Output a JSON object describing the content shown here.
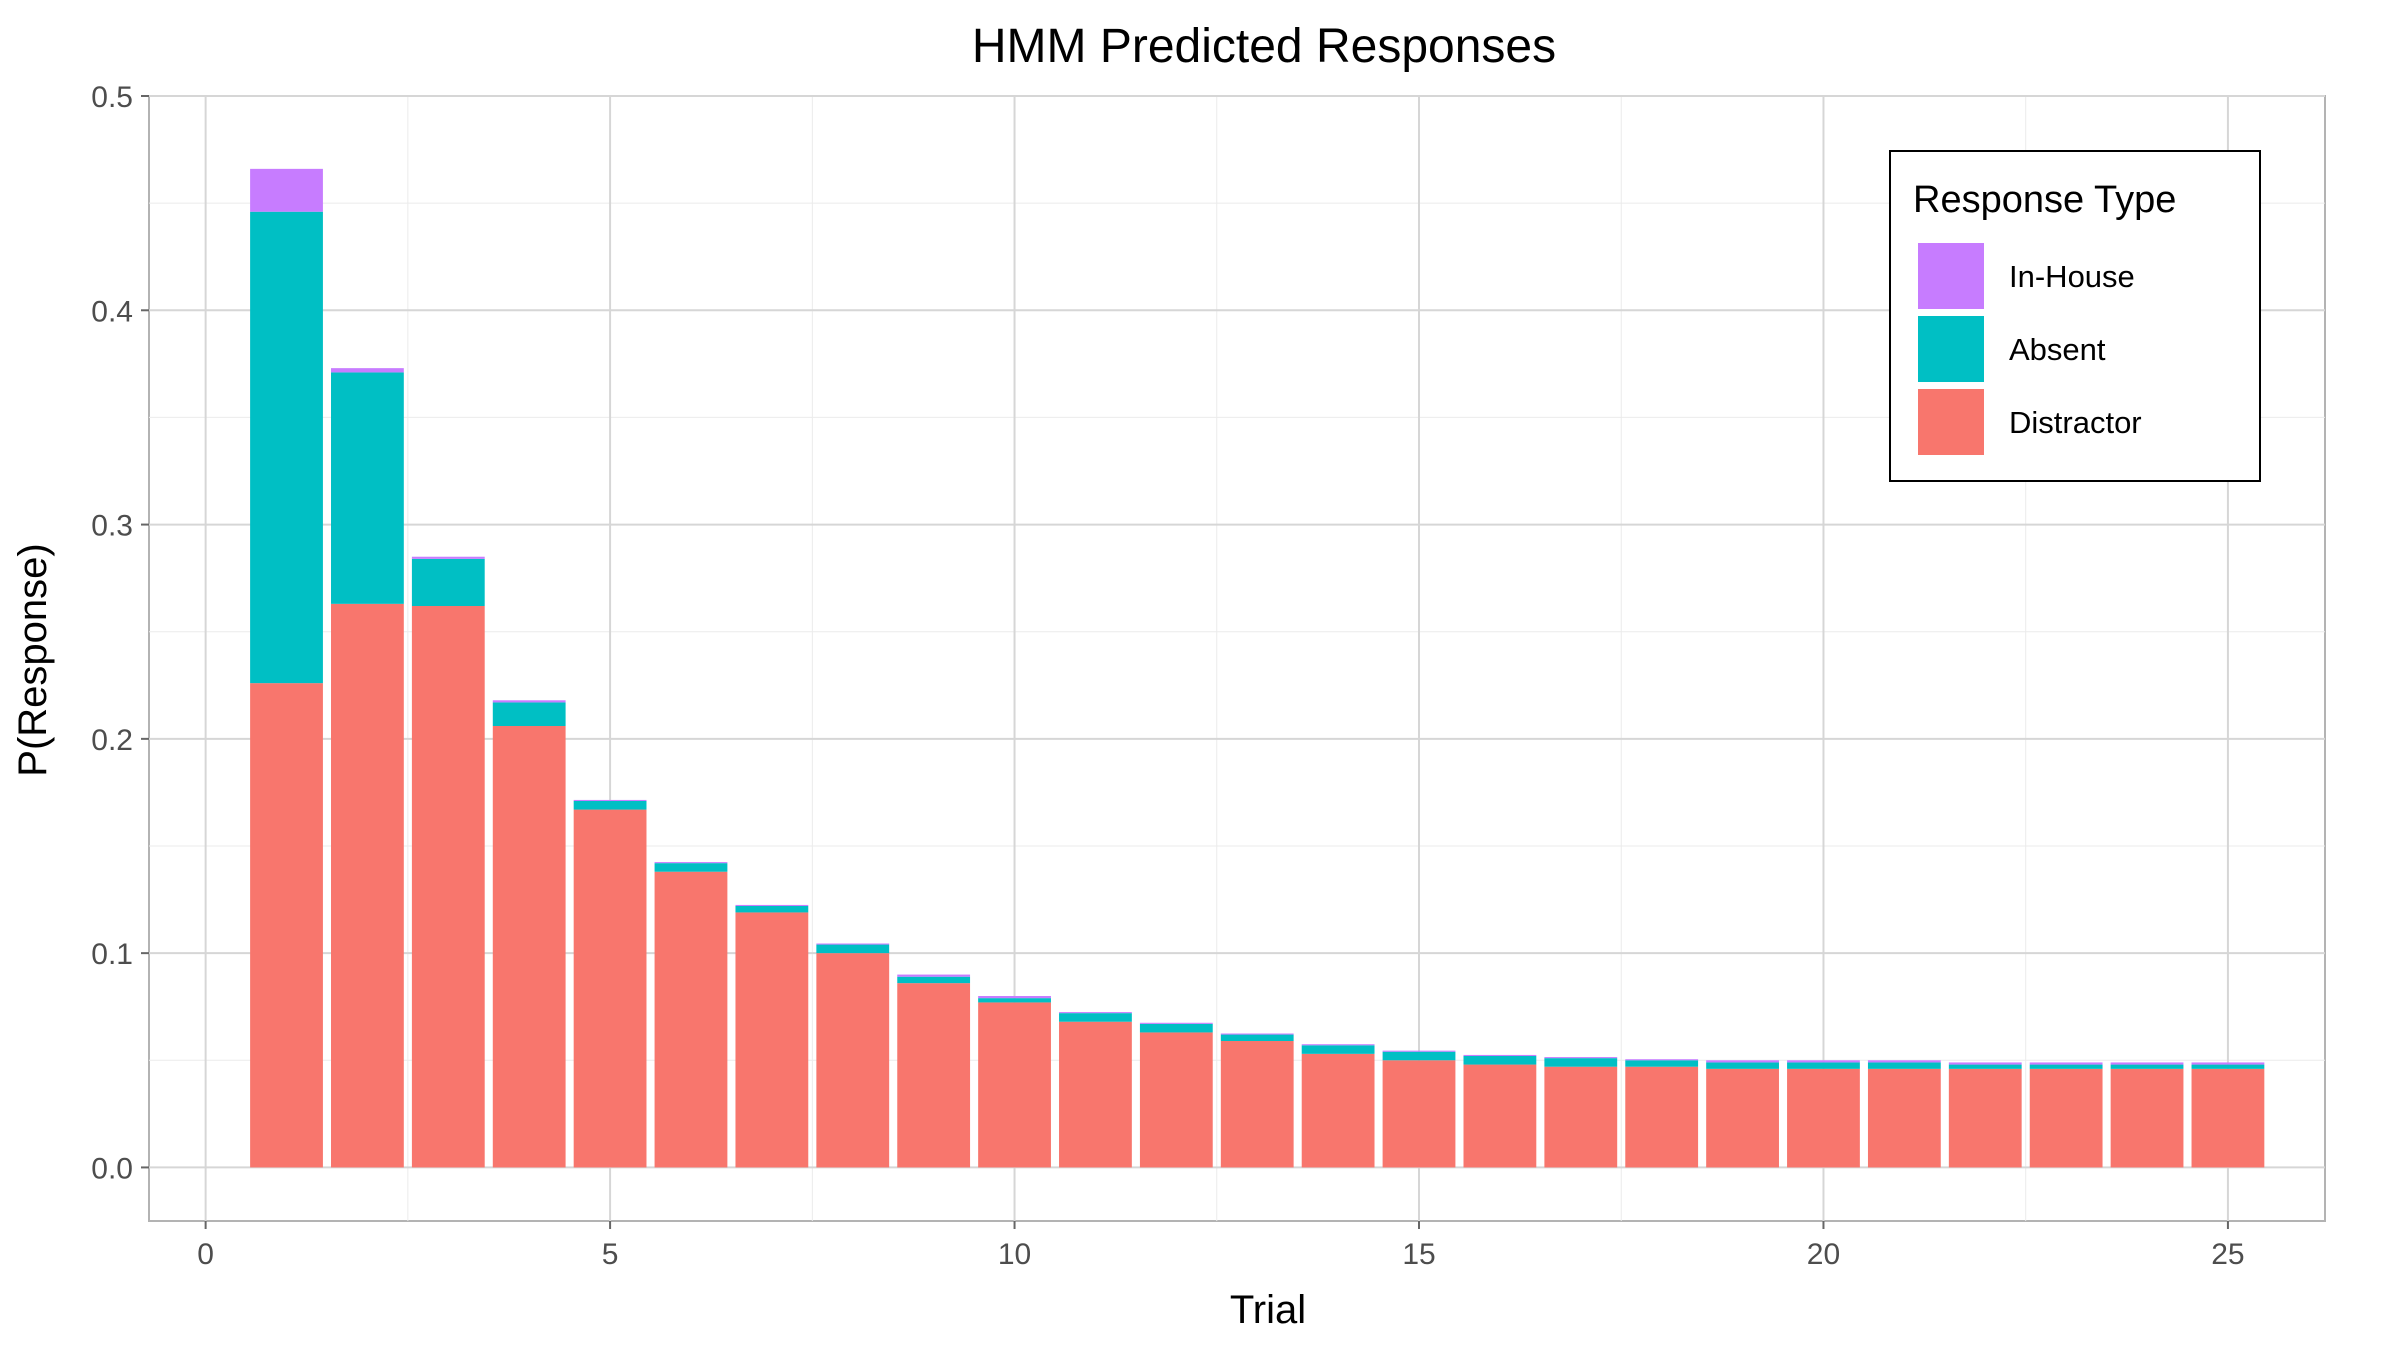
{
  "chart_data": {
    "type": "bar",
    "stacked": true,
    "title": "HMM Predicted Responses",
    "xlabel": "Trial",
    "ylabel": "P(Response)",
    "xlim": [
      -0.7,
      26.2
    ],
    "ylim": [
      -0.025,
      0.5
    ],
    "xticks": [
      0,
      5,
      10,
      15,
      20,
      25
    ],
    "yticks": [
      0.0,
      0.1,
      0.2,
      0.3,
      0.4,
      0.5
    ],
    "ytick_labels": [
      "0.0",
      "0.1",
      "0.2",
      "0.3",
      "0.4",
      "0.5"
    ],
    "grid": true,
    "legend_title": "Response Type",
    "legend_position": "top-right",
    "x": [
      1,
      2,
      3,
      4,
      5,
      6,
      7,
      8,
      9,
      10,
      11,
      12,
      13,
      14,
      15,
      16,
      17,
      18,
      19,
      20,
      21,
      22,
      23,
      24,
      25
    ],
    "series": [
      {
        "name": "Distractor",
        "color": "#F8766D",
        "values": [
          0.226,
          0.263,
          0.262,
          0.206,
          0.167,
          0.138,
          0.119,
          0.1,
          0.086,
          0.077,
          0.068,
          0.063,
          0.059,
          0.053,
          0.05,
          0.048,
          0.047,
          0.047,
          0.046,
          0.046,
          0.046,
          0.046,
          0.046,
          0.046,
          0.046
        ]
      },
      {
        "name": "Absent",
        "color": "#00BFC4",
        "values": [
          0.22,
          0.108,
          0.022,
          0.011,
          0.004,
          0.004,
          0.003,
          0.004,
          0.003,
          0.002,
          0.004,
          0.004,
          0.003,
          0.004,
          0.004,
          0.004,
          0.004,
          0.003,
          0.003,
          0.003,
          0.003,
          0.002,
          0.002,
          0.002,
          0.002
        ]
      },
      {
        "name": "In-House",
        "color": "#C77CFF",
        "values": [
          0.02,
          0.002,
          0.001,
          0.001,
          0.0005,
          0.0005,
          0.0005,
          0.0005,
          0.001,
          0.001,
          0.0005,
          0.0005,
          0.0005,
          0.0005,
          0.0005,
          0.0005,
          0.0005,
          0.0005,
          0.001,
          0.001,
          0.001,
          0.001,
          0.001,
          0.001,
          0.001
        ]
      }
    ],
    "legend_order": [
      "In-House",
      "Absent",
      "Distractor"
    ]
  }
}
